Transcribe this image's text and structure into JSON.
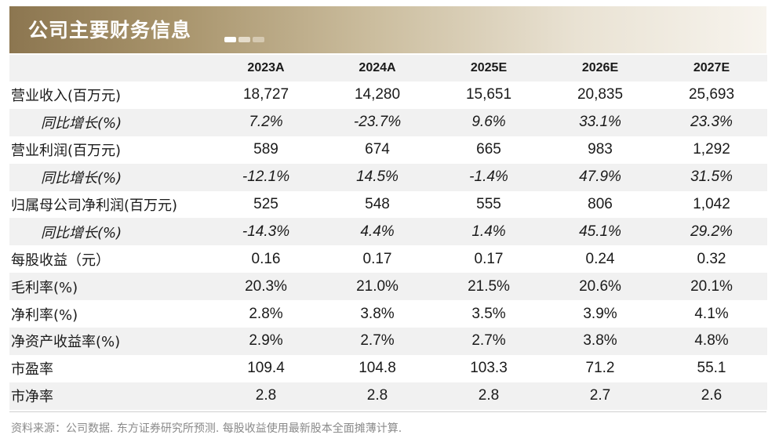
{
  "title": "公司主要财务信息",
  "columns": [
    "2023A",
    "2024A",
    "2025E",
    "2026E",
    "2027E"
  ],
  "rows": [
    {
      "label": "营业收入(百万元)",
      "values": [
        "18,727",
        "14,280",
        "15,651",
        "20,835",
        "25,693"
      ]
    },
    {
      "label": "同比增长(%)",
      "values": [
        "7.2%",
        "-23.7%",
        "9.6%",
        "33.1%",
        "23.3%"
      ]
    },
    {
      "label": "营业利润(百万元)",
      "values": [
        "589",
        "674",
        "665",
        "983",
        "1,292"
      ]
    },
    {
      "label": "同比增长(%)",
      "values": [
        "-12.1%",
        "14.5%",
        "-1.4%",
        "47.9%",
        "31.5%"
      ]
    },
    {
      "label": "归属母公司净利润(百万元)",
      "values": [
        "525",
        "548",
        "555",
        "806",
        "1,042"
      ]
    },
    {
      "label": "同比增长(%)",
      "values": [
        "-14.3%",
        "4.4%",
        "1.4%",
        "45.1%",
        "29.2%"
      ]
    },
    {
      "label": "每股收益（元）",
      "values": [
        "0.16",
        "0.17",
        "0.17",
        "0.24",
        "0.32"
      ]
    },
    {
      "label": "毛利率(%)",
      "values": [
        "20.3%",
        "21.0%",
        "21.5%",
        "20.6%",
        "20.1%"
      ]
    },
    {
      "label": "净利率(%)",
      "values": [
        "2.8%",
        "3.8%",
        "3.5%",
        "3.9%",
        "4.1%"
      ]
    },
    {
      "label": "净资产收益率(%)",
      "values": [
        "2.9%",
        "2.7%",
        "2.7%",
        "3.8%",
        "4.8%"
      ]
    },
    {
      "label": "市盈率",
      "values": [
        "109.4",
        "104.8",
        "103.3",
        "71.2",
        "55.1"
      ]
    },
    {
      "label": "市净率",
      "values": [
        "2.8",
        "2.8",
        "2.8",
        "2.7",
        "2.6"
      ]
    }
  ],
  "source": "资料来源：公司数据. 东方证券研究所预测. 每股收益使用最新股本全面摊薄计算.",
  "colors": {
    "banner_dark": "#8c7650",
    "banner_light": "#f7f4ee",
    "row_shade": "#f1f1f1",
    "source_text": "#8a8a8a"
  }
}
